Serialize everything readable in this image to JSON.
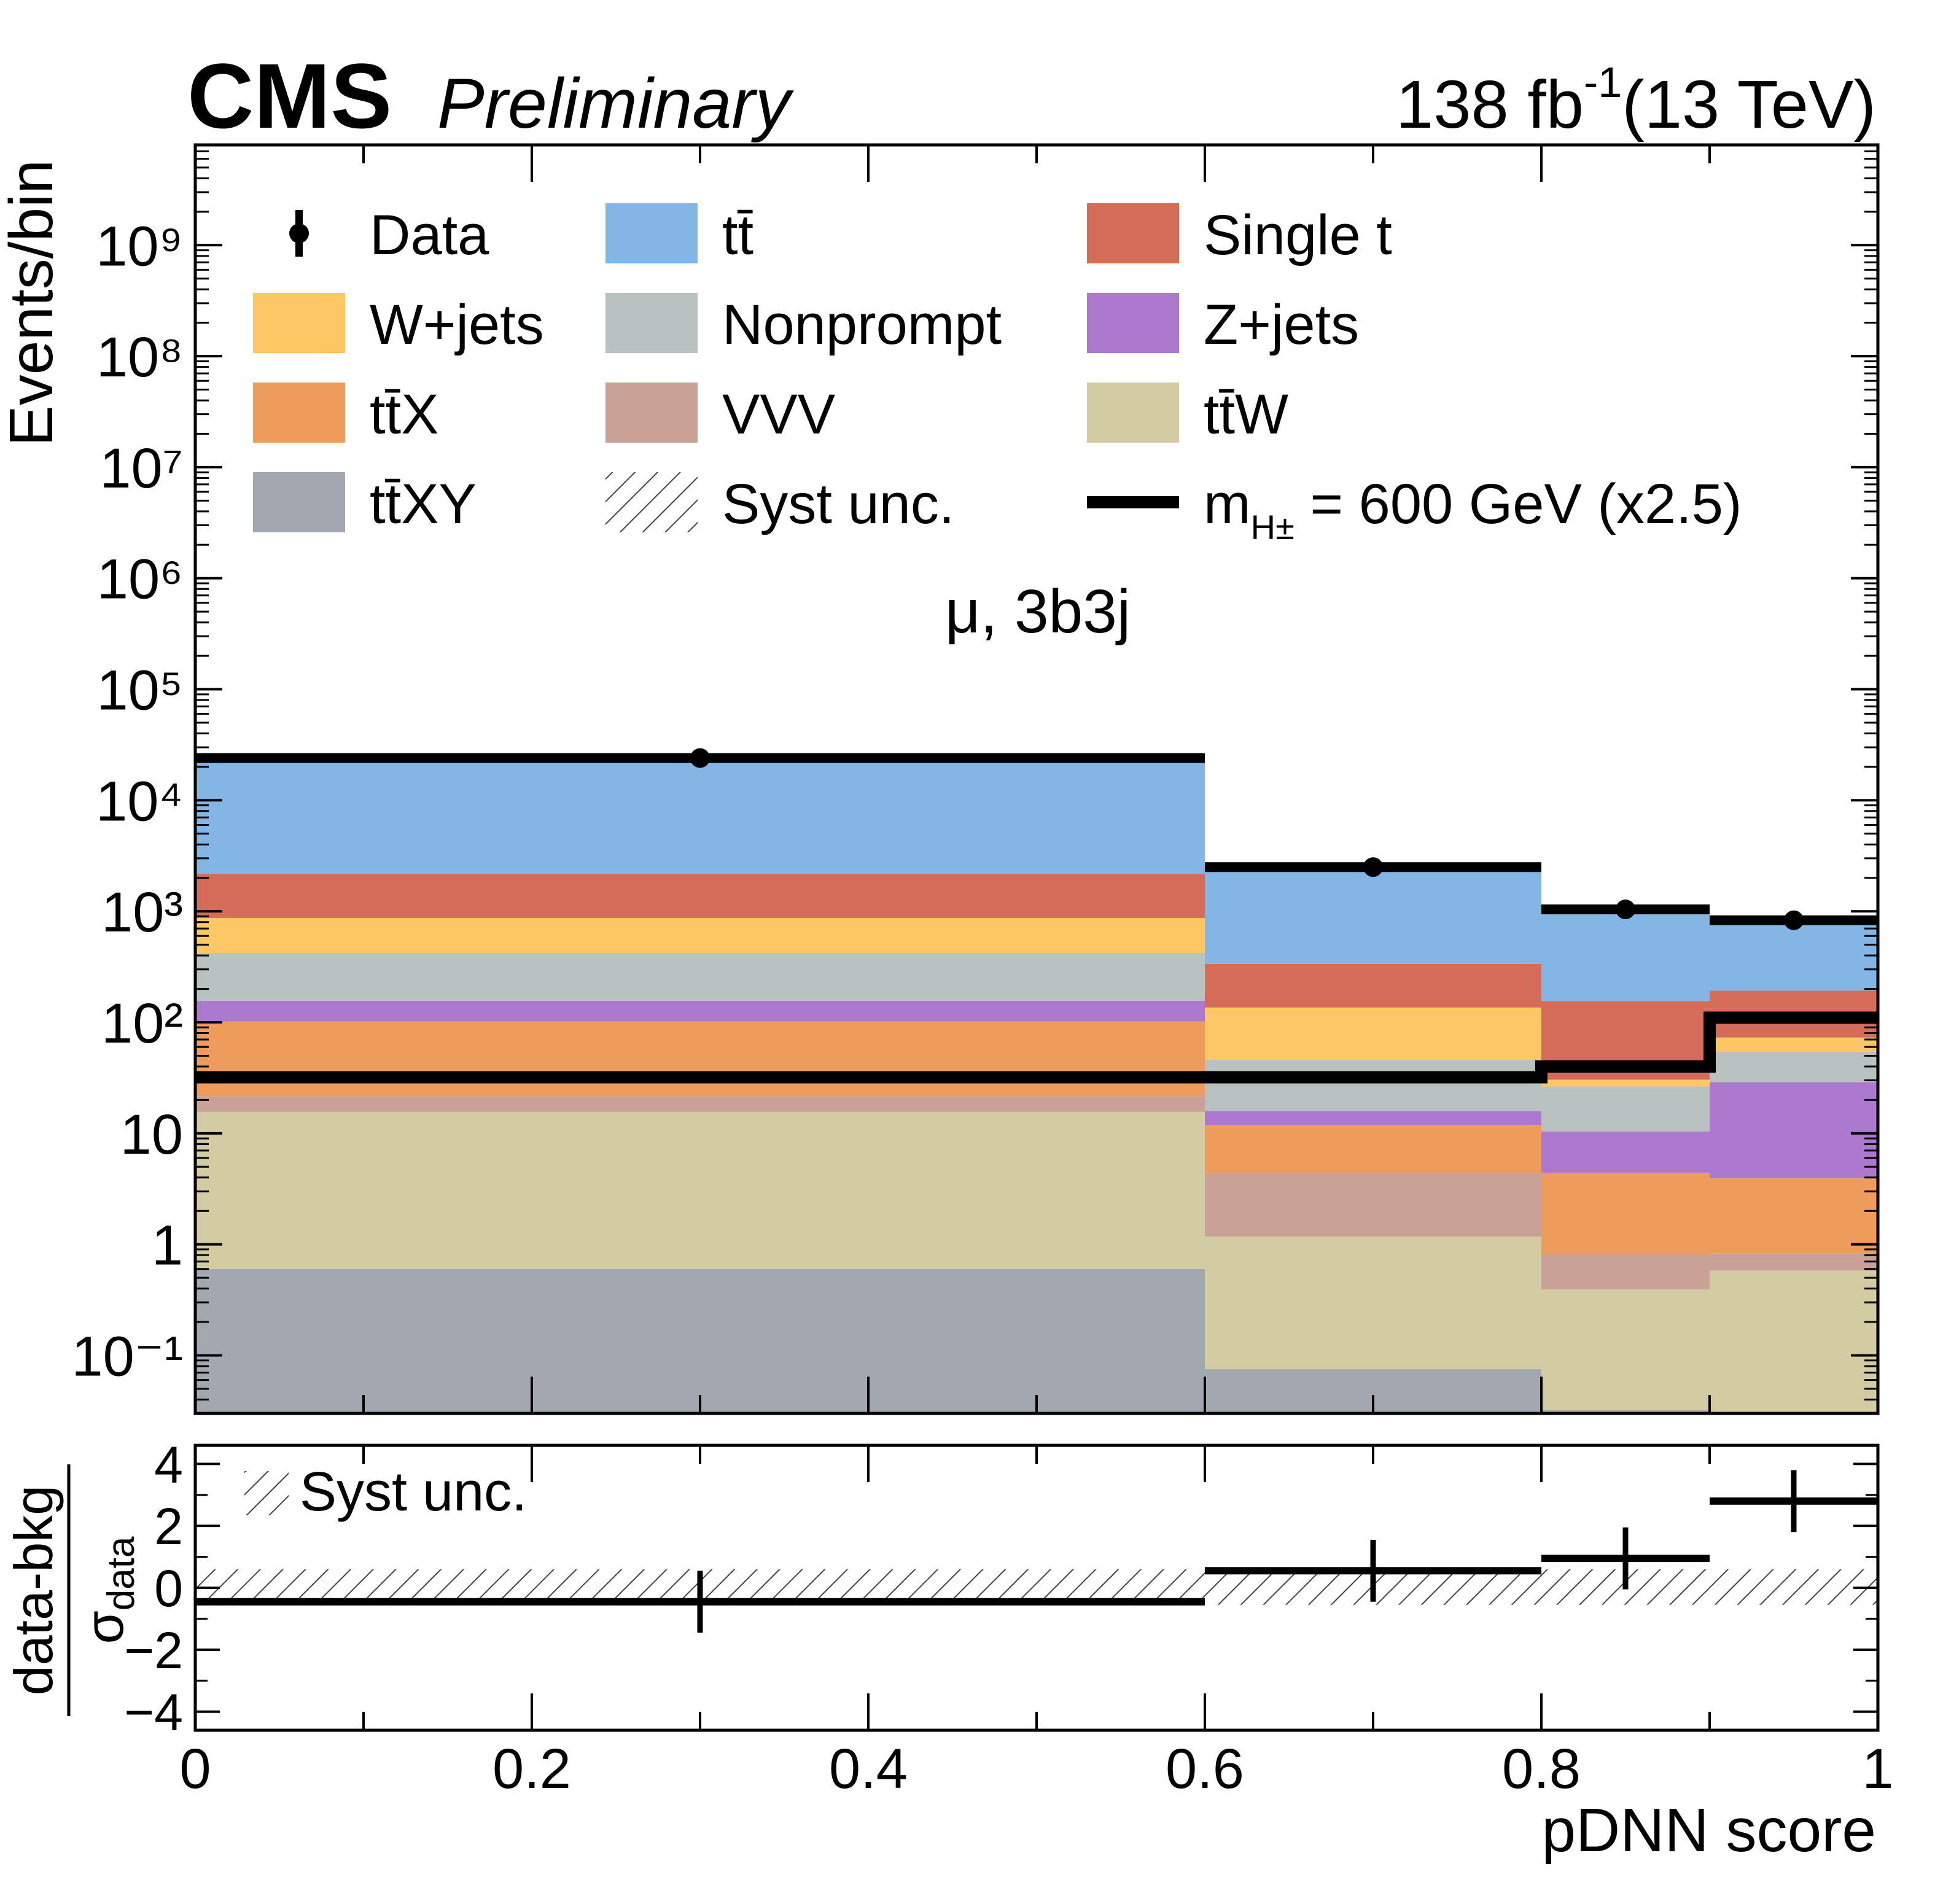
{
  "header": {
    "experiment": "CMS",
    "status": "Preliminary",
    "lumi_value": "138 fb",
    "lumi_exp": "-1",
    "energy": "(13 TeV)"
  },
  "chart_data": [
    {
      "type": "bar",
      "stacked": true,
      "ylabel": "Events/bin",
      "yscale": "log",
      "ylim": [
        0.03,
        8000000000.0
      ],
      "ytick_labels": [
        "10⁻¹",
        "1",
        "10",
        "10²",
        "10³",
        "10⁴",
        "10⁵",
        "10⁶",
        "10⁷",
        "10⁸",
        "10⁹"
      ],
      "xlim": [
        0,
        1
      ],
      "bin_edges": [
        0,
        0.6,
        0.8,
        0.9,
        1.0
      ],
      "annotation": "μ, 3b3j",
      "legend_placement": "top",
      "series": [
        {
          "name": "tt̄XY",
          "color": "#a2a7b0",
          "values": [
            0.6,
            0.075,
            0.032,
            0.03
          ]
        },
        {
          "name": "tt̄W",
          "color": "#d3cba2",
          "values": [
            15,
            1.1,
            0.36,
            0.55
          ]
        },
        {
          "name": "VVV",
          "color": "#c9a197",
          "values": [
            6,
            3.2,
            0.42,
            0.25
          ]
        },
        {
          "name": "tt̄X",
          "color": "#ee9c5c",
          "values": [
            80,
            7.5,
            3.6,
            3.1
          ]
        },
        {
          "name": "Z+jets",
          "color": "#ad79cf",
          "values": [
            55,
            4,
            6,
            25
          ]
        },
        {
          "name": "Nonprompt",
          "color": "#b8c2c1",
          "values": [
            265,
            30,
            16,
            25
          ]
        },
        {
          "name": "W+jets",
          "color": "#fdc763",
          "values": [
            450,
            90,
            4,
            19
          ]
        },
        {
          "name": "Single t",
          "color": "#d56c5a",
          "values": [
            1300,
            200,
            125,
            120
          ]
        },
        {
          "name": "tt̄",
          "color": "#83b5e5",
          "values": [
            21700,
            2300,
            875,
            670
          ]
        }
      ],
      "data": {
        "name": "Data",
        "x": [
          0.3,
          0.7,
          0.85,
          0.95
        ],
        "y": [
          24000,
          2500,
          1040,
          830
        ]
      },
      "signal": {
        "name_prefix": "m",
        "name_sub": "H±",
        "name_suffix": " = 600 GeV (x2.5)",
        "values": [
          32,
          32,
          40,
          110
        ]
      },
      "systematic": {
        "name": "Syst unc."
      }
    },
    {
      "type": "scatter",
      "ylabel": "data-bkg",
      "ylabel_denominator": "σ",
      "ylabel_denominator_sub": "data",
      "ylim": [
        -4.6,
        4.6
      ],
      "ytick_labels": [
        "−4",
        "−2",
        "0",
        "2",
        "4"
      ],
      "xlabel": "pDNN score",
      "xtick_labels": [
        "0",
        "0.2",
        "0.4",
        "0.6",
        "0.8",
        "1"
      ],
      "bin_edges": [
        0,
        0.6,
        0.8,
        0.9,
        1.0
      ],
      "points": [
        {
          "x": 0.3,
          "y": -0.45,
          "err": 1.0
        },
        {
          "x": 0.7,
          "y": 0.55,
          "err": 1.0
        },
        {
          "x": 0.85,
          "y": 0.95,
          "err": 1.0
        },
        {
          "x": 0.95,
          "y": 2.8,
          "err": 1.0
        }
      ],
      "syst_band": [
        [
          -0.55,
          0.6
        ],
        [
          -0.55,
          0.6
        ],
        [
          -0.55,
          0.6
        ],
        [
          -0.55,
          0.6
        ]
      ],
      "legend": "Syst unc."
    }
  ]
}
